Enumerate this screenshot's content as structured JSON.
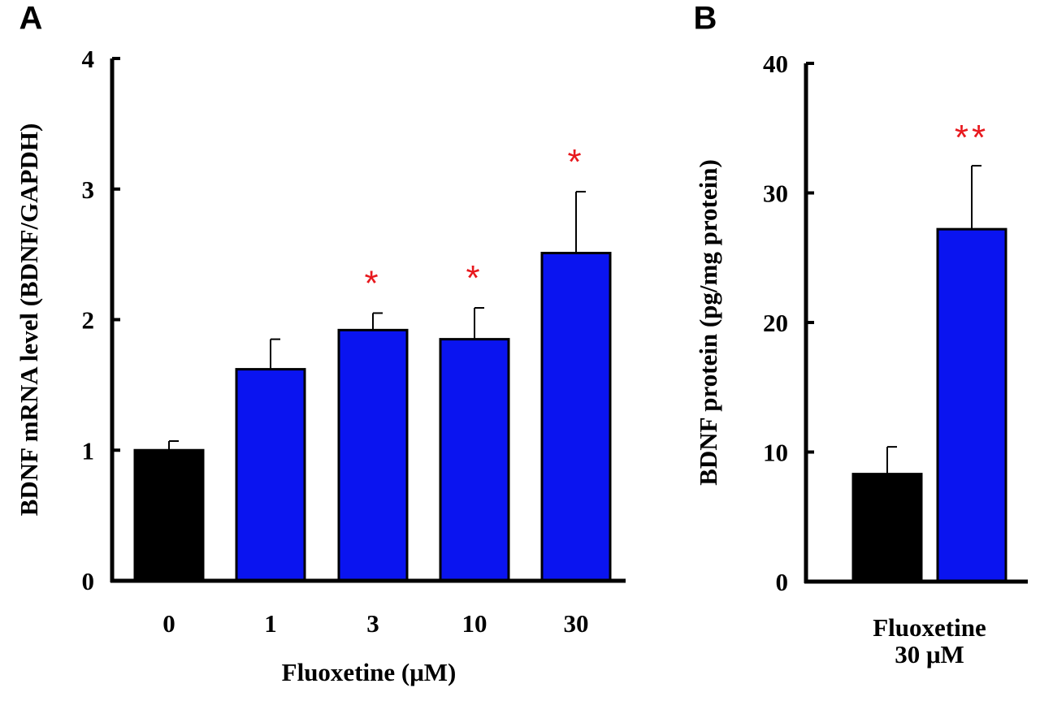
{
  "colors": {
    "control": "#000000",
    "treated": "#0a14f0",
    "significance": "#e8191e",
    "axis": "#000000"
  },
  "chart_data": [
    {
      "panel_label": "A",
      "type": "bar",
      "title": "",
      "xlabel": "Fluoxetine (μM)",
      "ylabel": "BDNF mRNA level (BDNF/GAPDH)",
      "ylim": [
        0,
        4
      ],
      "yticks": [
        "0",
        "1",
        "2",
        "3",
        "4"
      ],
      "categories": [
        "0",
        "1",
        "3",
        "10",
        "30"
      ],
      "values": [
        1.0,
        1.62,
        1.92,
        1.85,
        2.51
      ],
      "errors": [
        0.07,
        0.23,
        0.13,
        0.24,
        0.47
      ],
      "bar_colors": [
        "control",
        "treated",
        "treated",
        "treated",
        "treated"
      ],
      "significance": [
        "",
        "",
        "*",
        "*",
        "*"
      ]
    },
    {
      "panel_label": "B",
      "type": "bar",
      "title": "",
      "xlabel": "",
      "ylabel": "BDNF protein (pg/mg protein)",
      "ylim": [
        0,
        40
      ],
      "yticks": [
        "0",
        "10",
        "20",
        "30",
        "40"
      ],
      "categories": [
        "",
        ""
      ],
      "group_label": [
        "Fluoxetine",
        "30 μM"
      ],
      "values": [
        8.3,
        27.2
      ],
      "errors": [
        2.1,
        4.9
      ],
      "bar_colors": [
        "control",
        "treated"
      ],
      "significance": [
        "",
        "**"
      ]
    }
  ]
}
